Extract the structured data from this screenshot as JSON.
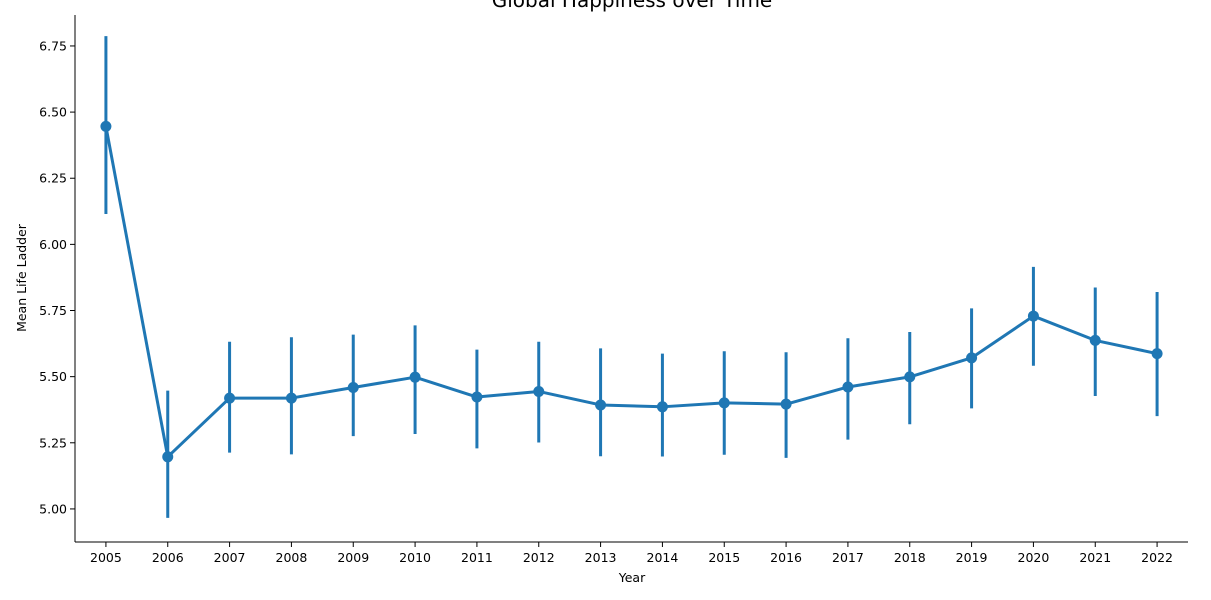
{
  "chart_data": {
    "type": "line",
    "title": "Global Happiness over Time",
    "xlabel": "Year",
    "ylabel": "Mean Life Ladder",
    "categories": [
      "2005",
      "2006",
      "2007",
      "2008",
      "2009",
      "2010",
      "2011",
      "2012",
      "2013",
      "2014",
      "2015",
      "2016",
      "2017",
      "2018",
      "2019",
      "2020",
      "2021",
      "2022"
    ],
    "series": [
      {
        "values": [
          6.446,
          5.197,
          5.419,
          5.419,
          5.459,
          5.498,
          5.423,
          5.444,
          5.393,
          5.386,
          5.401,
          5.396,
          5.461,
          5.499,
          5.571,
          5.729,
          5.637,
          5.587
        ],
        "ci_low": [
          6.115,
          4.966,
          5.213,
          5.206,
          5.275,
          5.283,
          5.229,
          5.251,
          5.199,
          5.198,
          5.205,
          5.193,
          5.262,
          5.32,
          5.38,
          5.541,
          5.427,
          5.351
        ],
        "ci_high": [
          6.787,
          5.447,
          5.632,
          5.649,
          5.659,
          5.694,
          5.602,
          5.632,
          5.607,
          5.587,
          5.596,
          5.592,
          5.645,
          5.669,
          5.758,
          5.915,
          5.837,
          5.82
        ],
        "color": "#1f77b4"
      }
    ],
    "y_ticks": [
      "5.00",
      "5.25",
      "5.50",
      "5.75",
      "6.00",
      "6.25",
      "6.50",
      "6.75"
    ],
    "ylim": [
      4.875,
      6.867
    ],
    "grid": false,
    "legend": "none"
  }
}
